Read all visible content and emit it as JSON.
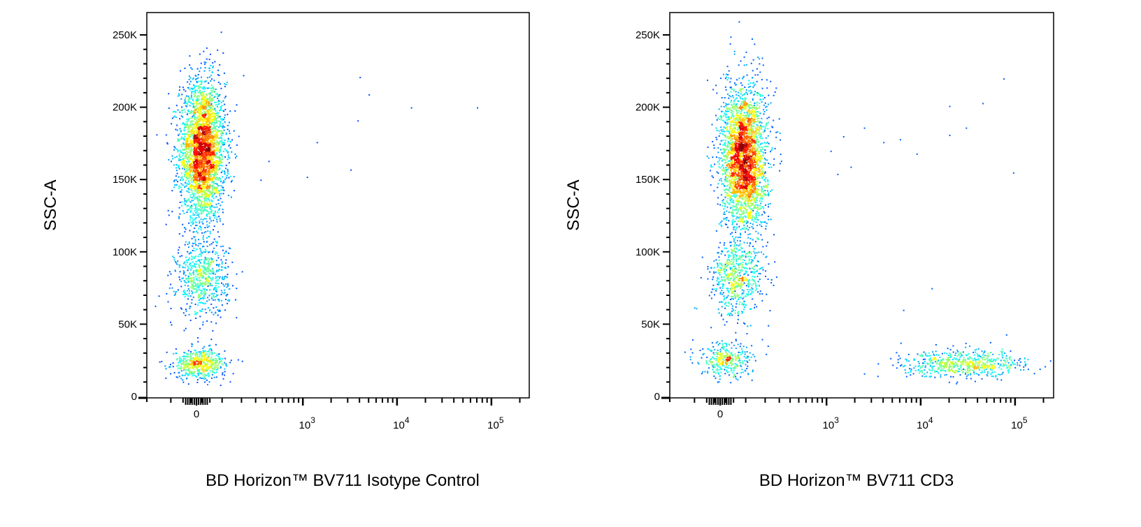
{
  "chart_data": [
    {
      "type": "scatter",
      "subtype": "flow-cytometry-pseudocolor",
      "xlabel": "BD Horizon™ BV711 Isotype Control",
      "ylabel": "SSC-A",
      "x_scale": "biexponential",
      "x_ticks": [
        {
          "value": 0,
          "label": "0"
        },
        {
          "value": 1000,
          "label": "10^3"
        },
        {
          "value": 10000,
          "label": "10^4"
        },
        {
          "value": 100000,
          "label": "10^5"
        }
      ],
      "y_ticks": [
        {
          "value": 0,
          "label": "0"
        },
        {
          "value": 50000,
          "label": "50K"
        },
        {
          "value": 100000,
          "label": "100K"
        },
        {
          "value": 150000,
          "label": "150K"
        },
        {
          "value": 200000,
          "label": "200K"
        },
        {
          "value": 250000,
          "label": "250K"
        }
      ],
      "ylim": [
        0,
        262000
      ],
      "populations": [
        {
          "name": "main",
          "x_center": 20,
          "y_center": 170000,
          "count": 3200,
          "y_sd": 24000
        },
        {
          "name": "mid",
          "x_center": 20,
          "y_center": 82000,
          "count": 650,
          "y_sd": 13000
        },
        {
          "name": "low",
          "x_center": 10,
          "y_center": 23000,
          "count": 550,
          "y_sd": 5000
        }
      ],
      "outliers": [
        [
          4000,
          221000
        ],
        [
          5000,
          209000
        ],
        [
          14000,
          200000
        ],
        [
          70000,
          200000
        ],
        [
          3800,
          191000
        ],
        [
          1400,
          176000
        ],
        [
          1100,
          152000
        ],
        [
          3200,
          157000
        ],
        [
          420,
          163000
        ],
        [
          340,
          150000
        ]
      ]
    },
    {
      "type": "scatter",
      "subtype": "flow-cytometry-pseudocolor",
      "xlabel": "BD Horizon™ BV711 CD3",
      "ylabel": "SSC-A",
      "x_scale": "biexponential",
      "x_ticks": [
        {
          "value": 0,
          "label": "0"
        },
        {
          "value": 1000,
          "label": "10^3"
        },
        {
          "value": 10000,
          "label": "10^4"
        },
        {
          "value": 100000,
          "label": "10^5"
        }
      ],
      "y_ticks": [
        {
          "value": 0,
          "label": "0"
        },
        {
          "value": 50000,
          "label": "50K"
        },
        {
          "value": 100000,
          "label": "100K"
        },
        {
          "value": 150000,
          "label": "150K"
        },
        {
          "value": 200000,
          "label": "200K"
        },
        {
          "value": 250000,
          "label": "250K"
        }
      ],
      "ylim": [
        0,
        262000
      ],
      "populations": [
        {
          "name": "main",
          "x_center": 90,
          "y_center": 165000,
          "count": 3000,
          "y_sd": 25000
        },
        {
          "name": "mid",
          "x_center": 60,
          "y_center": 82000,
          "count": 600,
          "y_sd": 13000
        },
        {
          "name": "low",
          "x_center": 20,
          "y_center": 25000,
          "count": 350,
          "y_sd": 6000
        },
        {
          "name": "CD3-positive",
          "x_center": 30000,
          "y_center": 23000,
          "count": 650,
          "y_sd": 4500
        }
      ],
      "outliers": [
        [
          75000,
          220000
        ],
        [
          20000,
          201000
        ],
        [
          45000,
          203000
        ],
        [
          30000,
          186000
        ],
        [
          20000,
          181000
        ],
        [
          9000,
          168000
        ],
        [
          6000,
          178000
        ],
        [
          4000,
          176000
        ],
        [
          2500,
          186000
        ],
        [
          1800,
          159000
        ],
        [
          1300,
          154000
        ],
        [
          95000,
          155000
        ],
        [
          13000,
          75000
        ],
        [
          6500,
          60000
        ],
        [
          80000,
          43000
        ],
        [
          2500,
          16000
        ],
        [
          3500,
          23000
        ],
        [
          5000,
          22000
        ],
        [
          1500,
          180000
        ],
        [
          1100,
          170000
        ]
      ]
    }
  ]
}
